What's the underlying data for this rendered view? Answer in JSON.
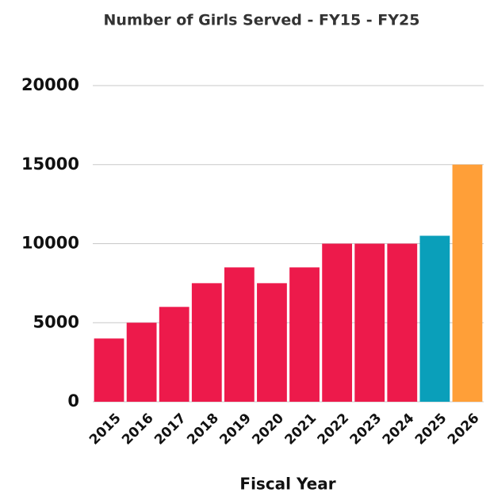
{
  "chart_data": {
    "type": "bar",
    "title": "Number of Girls Served - FY15 - FY25",
    "x_label": "Fiscal Year",
    "categories": [
      "2015",
      "2016",
      "2017",
      "2018",
      "2019",
      "2020",
      "2021",
      "2022",
      "2023",
      "2024",
      "2025",
      "2026"
    ],
    "values": [
      4000,
      5000,
      6000,
      7500,
      8500,
      7500,
      8500,
      10000,
      10000,
      10000,
      10500,
      15000
    ],
    "colors": [
      "#ed1a4b",
      "#ed1a4b",
      "#ed1a4b",
      "#ed1a4b",
      "#ed1a4b",
      "#ed1a4b",
      "#ed1a4b",
      "#ed1a4b",
      "#ed1a4b",
      "#ed1a4b",
      "#0a9fba",
      "#ff9f38"
    ],
    "ylim": [
      0,
      20000
    ],
    "yticks": [
      0,
      5000,
      10000,
      15000,
      20000
    ],
    "grid": true
  }
}
